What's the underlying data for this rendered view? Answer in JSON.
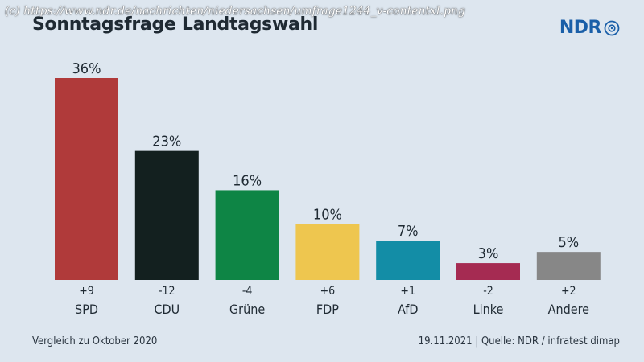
{
  "watermark": "(c) https://www.ndr.de/nachrichten/niedersachsen/umfrage1244_v-contentxl.png",
  "logo": {
    "text": "NDR",
    "icon": "ard-eye-icon",
    "brand_color": "#1a5fa8"
  },
  "footer": {
    "left": "Vergleich zu Oktober 2020",
    "right": "19.11.2021  |  Quelle: NDR / infratest dimap"
  },
  "chart_data": {
    "type": "bar",
    "title": "Sonntagsfrage Landtagswahl",
    "categories": [
      "SPD",
      "CDU",
      "Grüne",
      "FDP",
      "AfD",
      "Linke",
      "Andere"
    ],
    "values": [
      36,
      23,
      16,
      10,
      7,
      3,
      5
    ],
    "value_labels": [
      "36%",
      "23%",
      "16%",
      "10%",
      "7%",
      "3%",
      "5%"
    ],
    "changes": [
      "+9",
      "-12",
      "-4",
      "+6",
      "+1",
      "-2",
      "+2"
    ],
    "colors": [
      "#b03a3a",
      "#13201f",
      "#0e8545",
      "#eec64f",
      "#138da6",
      "#a52b52",
      "#878787"
    ],
    "ylim": [
      0,
      36
    ],
    "grid": false,
    "legend": "none"
  }
}
